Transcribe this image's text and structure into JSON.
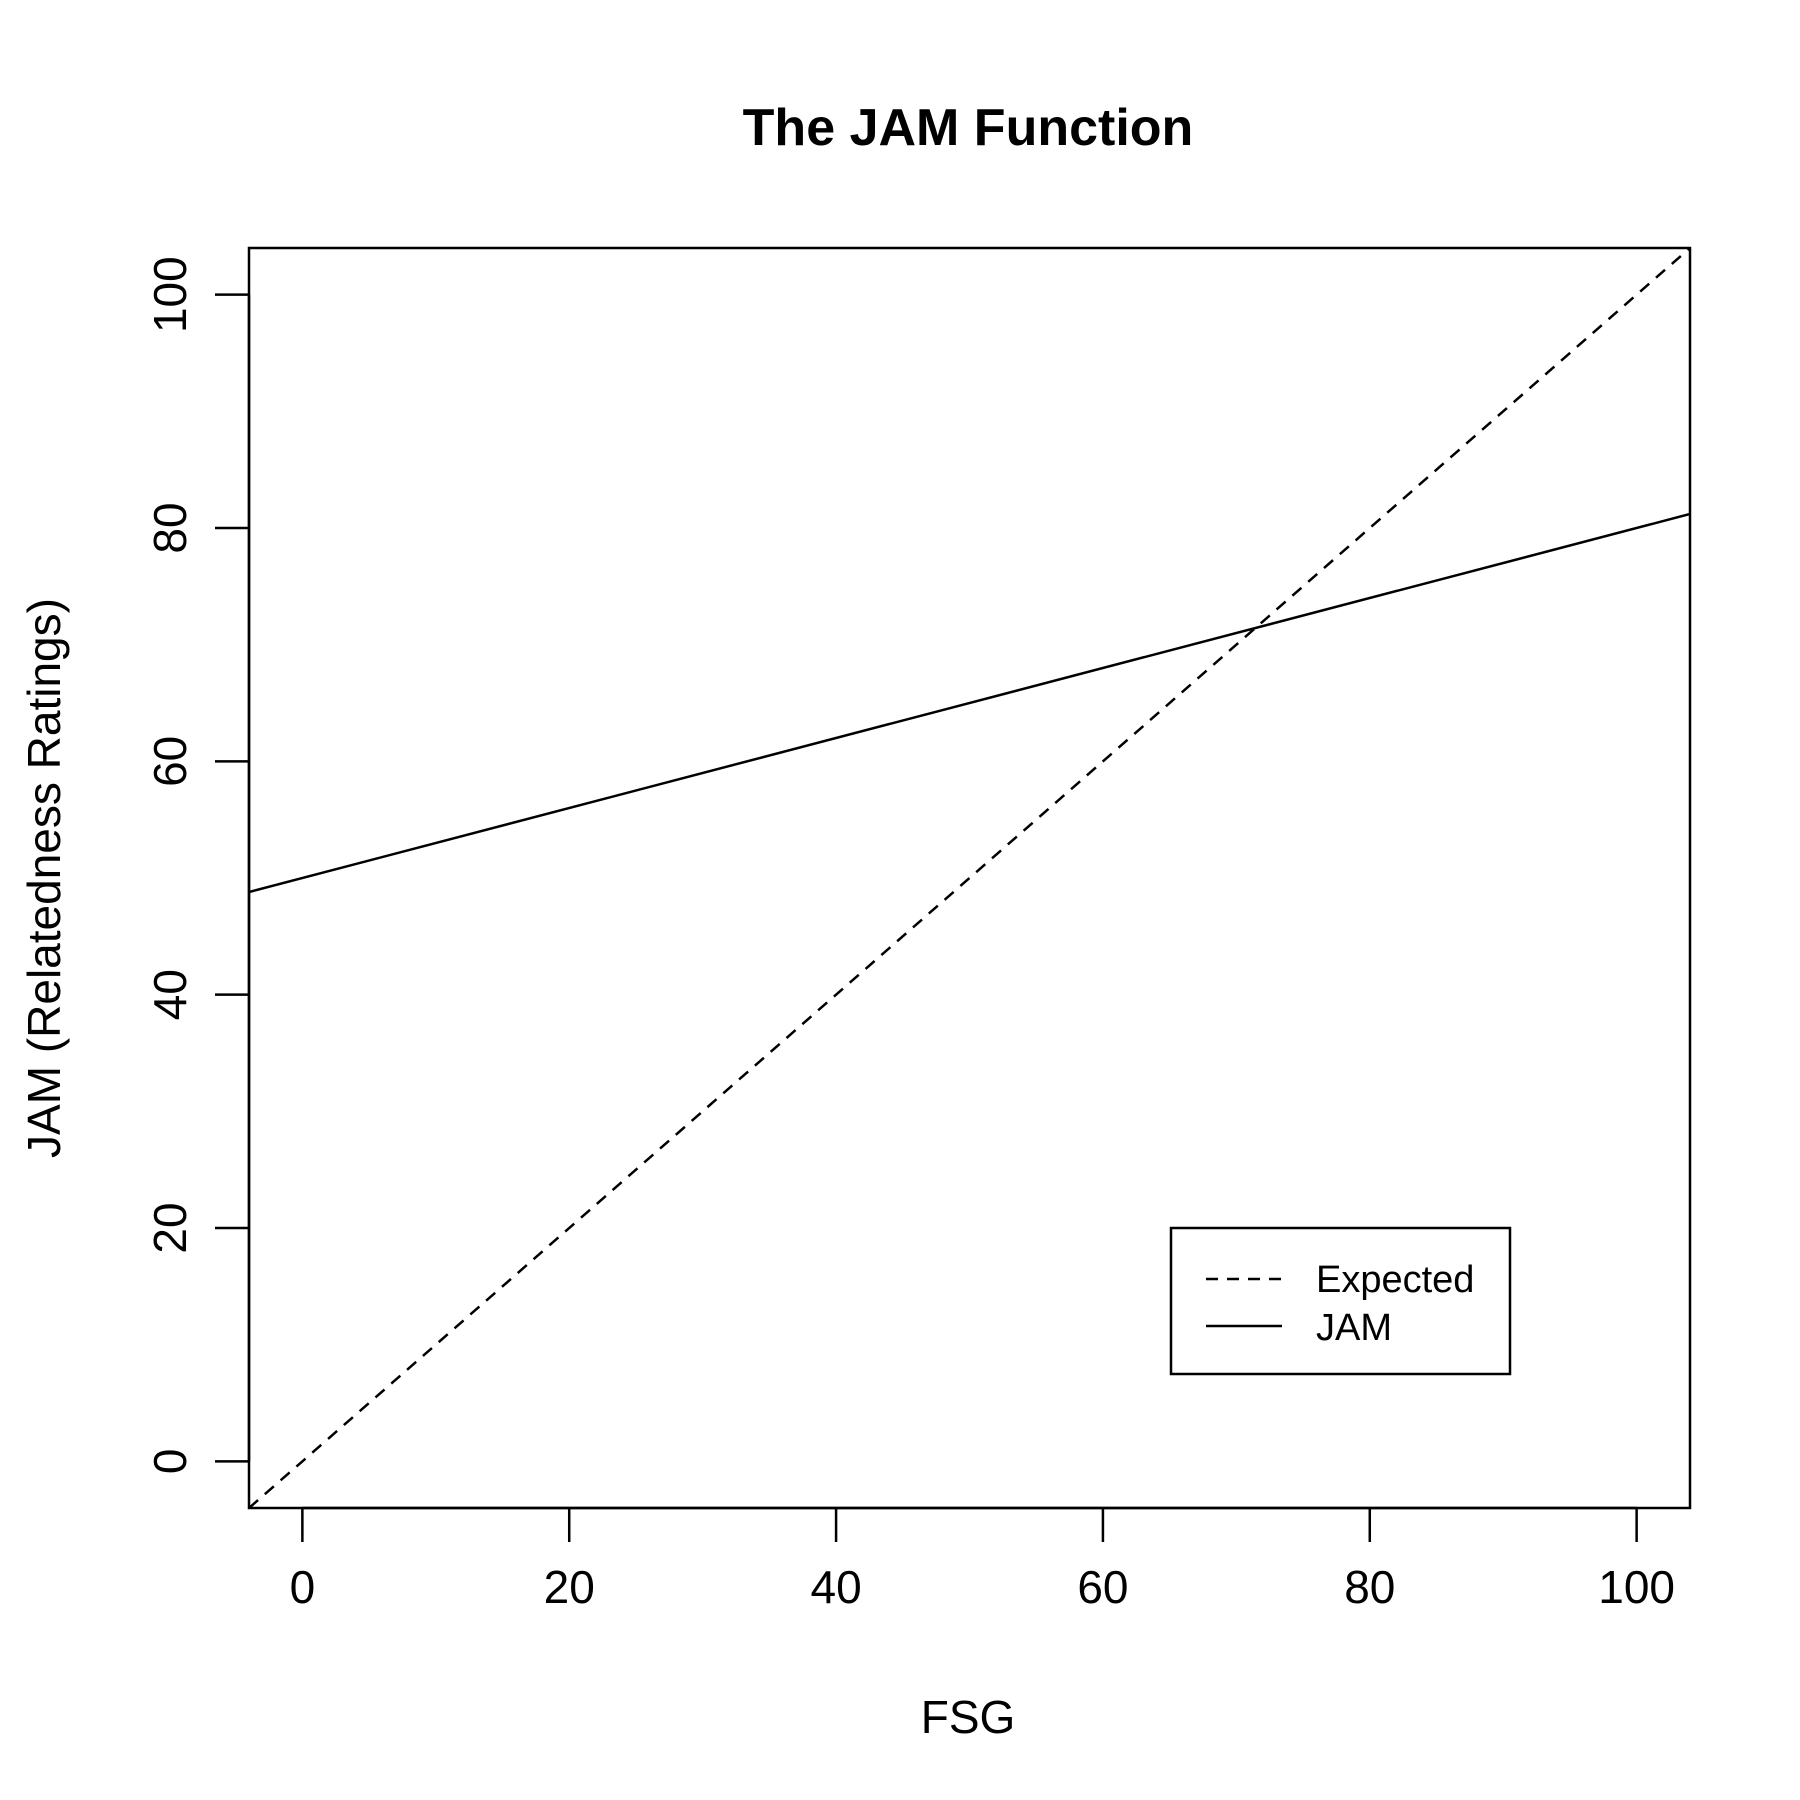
{
  "chart_data": {
    "type": "line",
    "title": "The JAM Function",
    "xlabel": "FSG",
    "ylabel": "JAM (Relatedness Ratings)",
    "xlim": [
      -4,
      104
    ],
    "ylim": [
      -4,
      104
    ],
    "x_ticks": [
      0,
      20,
      40,
      60,
      80,
      100
    ],
    "y_ticks": [
      0,
      20,
      40,
      60,
      80,
      100
    ],
    "grid": false,
    "legend_position": "bottom-right",
    "series": [
      {
        "name": "Expected",
        "line_style": "dashed",
        "color": "#000000",
        "x": [
          -4,
          104
        ],
        "y": [
          -4,
          104
        ]
      },
      {
        "name": "JAM",
        "line_style": "solid",
        "color": "#000000",
        "x": [
          -4,
          104
        ],
        "y": [
          48.8,
          81.2
        ]
      }
    ]
  }
}
